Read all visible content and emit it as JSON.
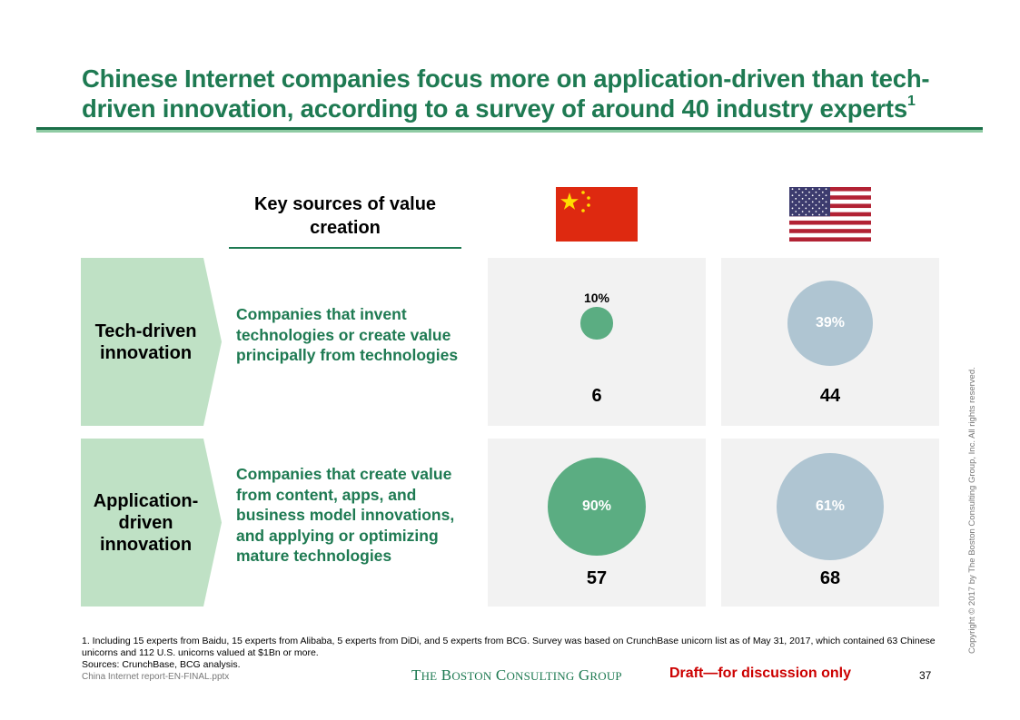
{
  "slide": {
    "title": "Chinese Internet companies focus more on application-driven than tech-driven innovation, according to a survey of around 40 industry experts",
    "title_footnote_marker": "1",
    "column_header": "Key sources of value creation",
    "flags": [
      {
        "country": "China",
        "icon": "china-flag-icon"
      },
      {
        "country": "United States",
        "icon": "us-flag-icon"
      }
    ],
    "rows": [
      {
        "label": "Tech-driven innovation",
        "description": "Companies that invent technologies or create value principally from technologies"
      },
      {
        "label": "Application-driven innovation",
        "description": "Companies that create value from content, apps, and business model innovations, and applying or optimizing mature technologies"
      }
    ],
    "footnote": "1. Including 15 experts from Baidu, 15 experts from Alibaba, 5 experts from DiDi, and 5 experts from BCG. Survey was based on CrunchBase unicorn list as of May 31, 2017, which contained 63 Chinese unicorns and 112 U.S. unicorns valued at $1Bn or more.",
    "sources": "Sources: CrunchBase, BCG analysis.",
    "filename": "China Internet report-EN-FINAL.pptx",
    "logo_text": "The Boston Consulting Group",
    "draft_label": "Draft—for discussion only",
    "page_number": "37",
    "copyright": "Copyright © 2017 by The Boston Consulting Group, Inc. All rights reserved."
  },
  "colors": {
    "brand_green": "#1e7a52",
    "china_bubble": "#5bad82",
    "us_bubble": "#afc5d2",
    "chevron_fill": "#bfe1c5",
    "panel_fill": "#f2f2f2",
    "draft_red": "#cc0000"
  },
  "chart_data": {
    "type": "bubble-matrix",
    "title": "Key sources of value creation",
    "columns": [
      "China",
      "United States"
    ],
    "rows": [
      "Tech-driven innovation",
      "Application-driven innovation"
    ],
    "cells": [
      {
        "row": "Tech-driven innovation",
        "column": "China",
        "percent": 10,
        "percent_label": "10%",
        "count": 6
      },
      {
        "row": "Tech-driven innovation",
        "column": "United States",
        "percent": 39,
        "percent_label": "39%",
        "count": 44
      },
      {
        "row": "Application-driven innovation",
        "column": "China",
        "percent": 90,
        "percent_label": "90%",
        "count": 57
      },
      {
        "row": "Application-driven innovation",
        "column": "United States",
        "percent": 61,
        "percent_label": "61%",
        "count": 68
      }
    ],
    "totals": {
      "China": 63,
      "United States": 112
    }
  }
}
